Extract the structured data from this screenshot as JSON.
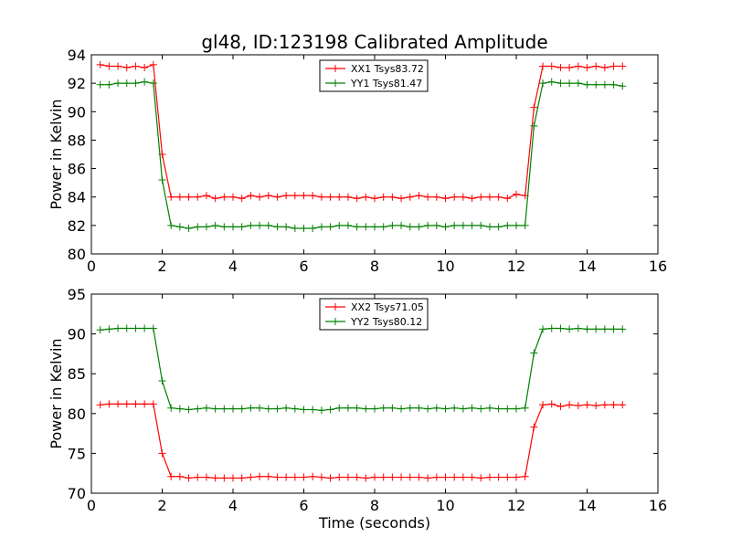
{
  "chart_data": {
    "title": "gl48, ID:123198 Calibrated Amplitude",
    "xlabel": "Time (seconds)",
    "x": [
      0.25,
      0.5,
      0.75,
      1.0,
      1.25,
      1.5,
      1.75,
      2.0,
      2.25,
      2.5,
      2.75,
      3.0,
      3.25,
      3.5,
      3.75,
      4.0,
      4.25,
      4.5,
      4.75,
      5.0,
      5.25,
      5.5,
      5.75,
      6.0,
      6.25,
      6.5,
      6.75,
      7.0,
      7.25,
      7.5,
      7.75,
      8.0,
      8.25,
      8.5,
      8.75,
      9.0,
      9.25,
      9.5,
      9.75,
      10.0,
      10.25,
      10.5,
      10.75,
      11.0,
      11.25,
      11.5,
      11.75,
      12.0,
      12.25,
      12.5,
      12.75,
      13.0,
      13.25,
      13.5,
      13.75,
      14.0,
      14.25,
      14.5,
      14.75,
      15.0
    ],
    "subplots": [
      {
        "type": "line",
        "ylabel": "Power in Kelvin",
        "xlim": [
          0,
          16
        ],
        "ylim": [
          80,
          94
        ],
        "xticks": [
          0,
          2,
          4,
          6,
          8,
          10,
          12,
          14,
          16
        ],
        "yticks": [
          80,
          82,
          84,
          86,
          88,
          90,
          92,
          94
        ],
        "legend": "top-center",
        "series": [
          {
            "name": "XX1 Tsys83.72",
            "color": "#ff0000",
            "values": [
              93.3,
              93.2,
              93.2,
              93.1,
              93.2,
              93.1,
              93.3,
              87.0,
              84.0,
              84.0,
              84.0,
              84.0,
              84.1,
              83.9,
              84.0,
              84.0,
              83.9,
              84.1,
              84.0,
              84.1,
              84.0,
              84.1,
              84.1,
              84.1,
              84.1,
              84.0,
              84.0,
              84.0,
              84.0,
              83.9,
              84.0,
              83.9,
              84.0,
              84.0,
              83.9,
              84.0,
              84.1,
              84.0,
              84.0,
              83.9,
              84.0,
              84.0,
              83.9,
              84.0,
              84.0,
              84.0,
              83.9,
              84.2,
              84.1,
              90.3,
              93.2,
              93.2,
              93.1,
              93.1,
              93.2,
              93.1,
              93.2,
              93.1,
              93.2,
              93.2
            ]
          },
          {
            "name": "YY1 Tsys81.47",
            "color": "#008000",
            "values": [
              91.9,
              91.9,
              92.0,
              92.0,
              92.0,
              92.1,
              92.0,
              85.2,
              82.0,
              81.9,
              81.8,
              81.9,
              81.9,
              82.0,
              81.9,
              81.9,
              81.9,
              82.0,
              82.0,
              82.0,
              81.9,
              81.9,
              81.8,
              81.8,
              81.8,
              81.9,
              81.9,
              82.0,
              82.0,
              81.9,
              81.9,
              81.9,
              81.9,
              82.0,
              82.0,
              81.9,
              81.9,
              82.0,
              82.0,
              81.9,
              82.0,
              82.0,
              82.0,
              82.0,
              81.9,
              81.9,
              82.0,
              82.0,
              82.0,
              89.0,
              92.0,
              92.1,
              92.0,
              92.0,
              92.0,
              91.9,
              91.9,
              91.9,
              91.9,
              91.8
            ]
          }
        ]
      },
      {
        "type": "line",
        "ylabel": "Power in Kelvin",
        "xlim": [
          0,
          16
        ],
        "ylim": [
          70,
          95
        ],
        "xticks": [
          0,
          2,
          4,
          6,
          8,
          10,
          12,
          14,
          16
        ],
        "yticks": [
          70,
          75,
          80,
          85,
          90,
          95
        ],
        "legend": "top-center",
        "series": [
          {
            "name": "XX2 Tsys71.05",
            "color": "#ff0000",
            "values": [
              81.1,
              81.2,
              81.2,
              81.2,
              81.2,
              81.2,
              81.2,
              75.0,
              72.1,
              72.1,
              71.9,
              72.0,
              72.0,
              71.9,
              71.9,
              71.9,
              71.9,
              72.0,
              72.1,
              72.1,
              72.0,
              72.0,
              72.0,
              72.0,
              72.1,
              72.0,
              71.9,
              72.0,
              72.0,
              72.0,
              71.9,
              72.0,
              72.0,
              72.0,
              72.0,
              72.0,
              72.0,
              71.9,
              72.0,
              72.0,
              72.0,
              72.0,
              72.0,
              71.9,
              72.0,
              72.0,
              72.0,
              72.0,
              72.1,
              78.3,
              81.1,
              81.2,
              80.9,
              81.1,
              81.0,
              81.1,
              81.0,
              81.1,
              81.1,
              81.1
            ]
          },
          {
            "name": "YY2 Tsys80.12",
            "color": "#008000",
            "values": [
              90.5,
              90.6,
              90.7,
              90.7,
              90.7,
              90.7,
              90.7,
              84.1,
              80.7,
              80.6,
              80.5,
              80.6,
              80.7,
              80.6,
              80.6,
              80.6,
              80.6,
              80.7,
              80.7,
              80.6,
              80.6,
              80.7,
              80.6,
              80.5,
              80.5,
              80.4,
              80.5,
              80.7,
              80.7,
              80.7,
              80.6,
              80.6,
              80.7,
              80.7,
              80.6,
              80.7,
              80.7,
              80.6,
              80.7,
              80.6,
              80.7,
              80.6,
              80.7,
              80.6,
              80.7,
              80.6,
              80.6,
              80.6,
              80.7,
              87.6,
              90.6,
              90.7,
              90.7,
              90.6,
              90.7,
              90.6,
              90.6,
              90.6,
              90.6,
              90.6
            ]
          }
        ]
      }
    ]
  }
}
